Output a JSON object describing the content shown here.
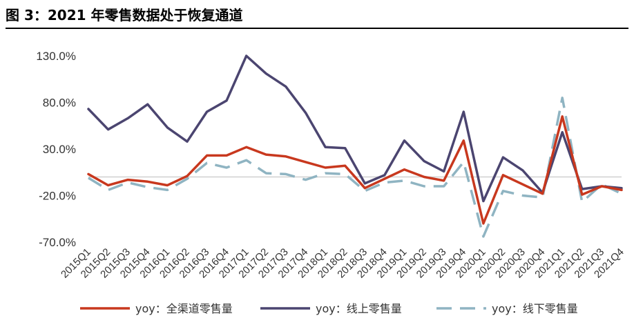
{
  "title": "图 3：2021 年零售数据处于恢复通道",
  "chart_data": {
    "type": "line",
    "categories": [
      "2015Q1",
      "2015Q2",
      "2015Q3",
      "2015Q4",
      "2016Q1",
      "2016Q2",
      "2016Q3",
      "2016Q4",
      "2017Q1",
      "2017Q2",
      "2017Q3",
      "2017Q4",
      "2018Q1",
      "2018Q2",
      "2018Q3",
      "2018Q4",
      "2019Q1",
      "2019Q2",
      "2019Q3",
      "2019Q4",
      "2020Q1",
      "2020Q2",
      "2020Q3",
      "2020Q4",
      "2021Q1",
      "2021Q2",
      "2021Q3",
      "2021Q4"
    ],
    "ylim": [
      -70,
      130
    ],
    "yticks": [
      130,
      80,
      30,
      -20,
      -70
    ],
    "ytick_labels": [
      "130.0%",
      "80.0%",
      "30.0%",
      "-20.0%",
      "-70.0%"
    ],
    "series": [
      {
        "name": "yoy：全渠道零售量",
        "color": "#c8381e",
        "dash": "solid",
        "values": [
          3,
          -9,
          -3,
          -5,
          -9,
          1,
          23,
          23,
          32,
          24,
          22,
          16,
          10,
          12,
          -12,
          -2,
          8,
          0,
          -4,
          39,
          -50,
          2,
          -8,
          -18,
          65,
          -19,
          -10,
          -14
        ]
      },
      {
        "name": "yoy：线上零售量",
        "color": "#4b4570",
        "dash": "solid",
        "values": [
          73,
          51,
          63,
          78,
          53,
          38,
          70,
          82,
          130,
          111,
          97,
          69,
          32,
          31,
          -7,
          2,
          39,
          17,
          6,
          70,
          -26,
          21,
          7,
          -17,
          48,
          -13,
          -10,
          -12
        ]
      },
      {
        "name": "yoy：线下零售量",
        "color": "#8fb4c2",
        "dash": "dashed",
        "values": [
          -1,
          -14,
          -6,
          -11,
          -14,
          -2,
          15,
          10,
          18,
          4,
          3,
          -3,
          4,
          3,
          -15,
          -6,
          -4,
          -10,
          -10,
          16,
          -64,
          -15,
          -20,
          -22,
          85,
          -27,
          -8,
          -18
        ]
      }
    ]
  }
}
